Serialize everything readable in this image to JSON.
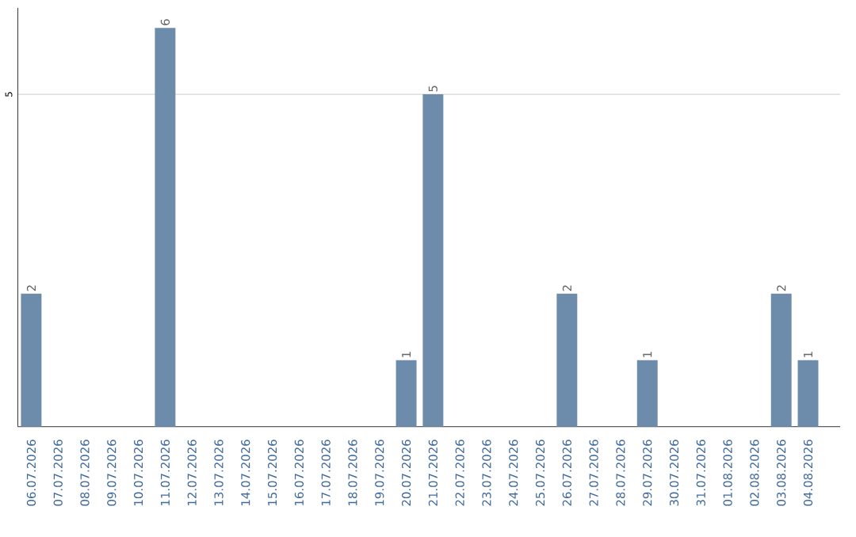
{
  "chart_data": {
    "type": "bar",
    "categories": [
      "06.07.2026",
      "07.07.2026",
      "08.07.2026",
      "09.07.2026",
      "10.07.2026",
      "11.07.2026",
      "12.07.2026",
      "13.07.2026",
      "14.07.2026",
      "15.07.2026",
      "16.07.2026",
      "17.07.2026",
      "18.07.2026",
      "19.07.2026",
      "20.07.2026",
      "21.07.2026",
      "22.07.2026",
      "23.07.2026",
      "24.07.2026",
      "25.07.2026",
      "26.07.2026",
      "27.07.2026",
      "28.07.2026",
      "29.07.2026",
      "30.07.2026",
      "31.07.2026",
      "01.08.2026",
      "02.08.2026",
      "03.08.2026",
      "04.08.2026"
    ],
    "values": [
      2,
      0,
      0,
      0,
      0,
      6,
      0,
      0,
      0,
      0,
      0,
      0,
      0,
      0,
      1,
      5,
      0,
      0,
      0,
      0,
      2,
      0,
      0,
      1,
      0,
      0,
      0,
      0,
      2,
      1
    ],
    "value_labels": [
      "2",
      null,
      null,
      null,
      null,
      "6",
      null,
      null,
      null,
      null,
      null,
      null,
      null,
      null,
      "1",
      "5",
      null,
      null,
      null,
      null,
      "2",
      null,
      null,
      "1",
      null,
      null,
      null,
      null,
      "2",
      "1"
    ],
    "color": "#6d8bab",
    "ylim": [
      0,
      6.3
    ],
    "yticks": [
      5
    ],
    "grid": "y"
  }
}
